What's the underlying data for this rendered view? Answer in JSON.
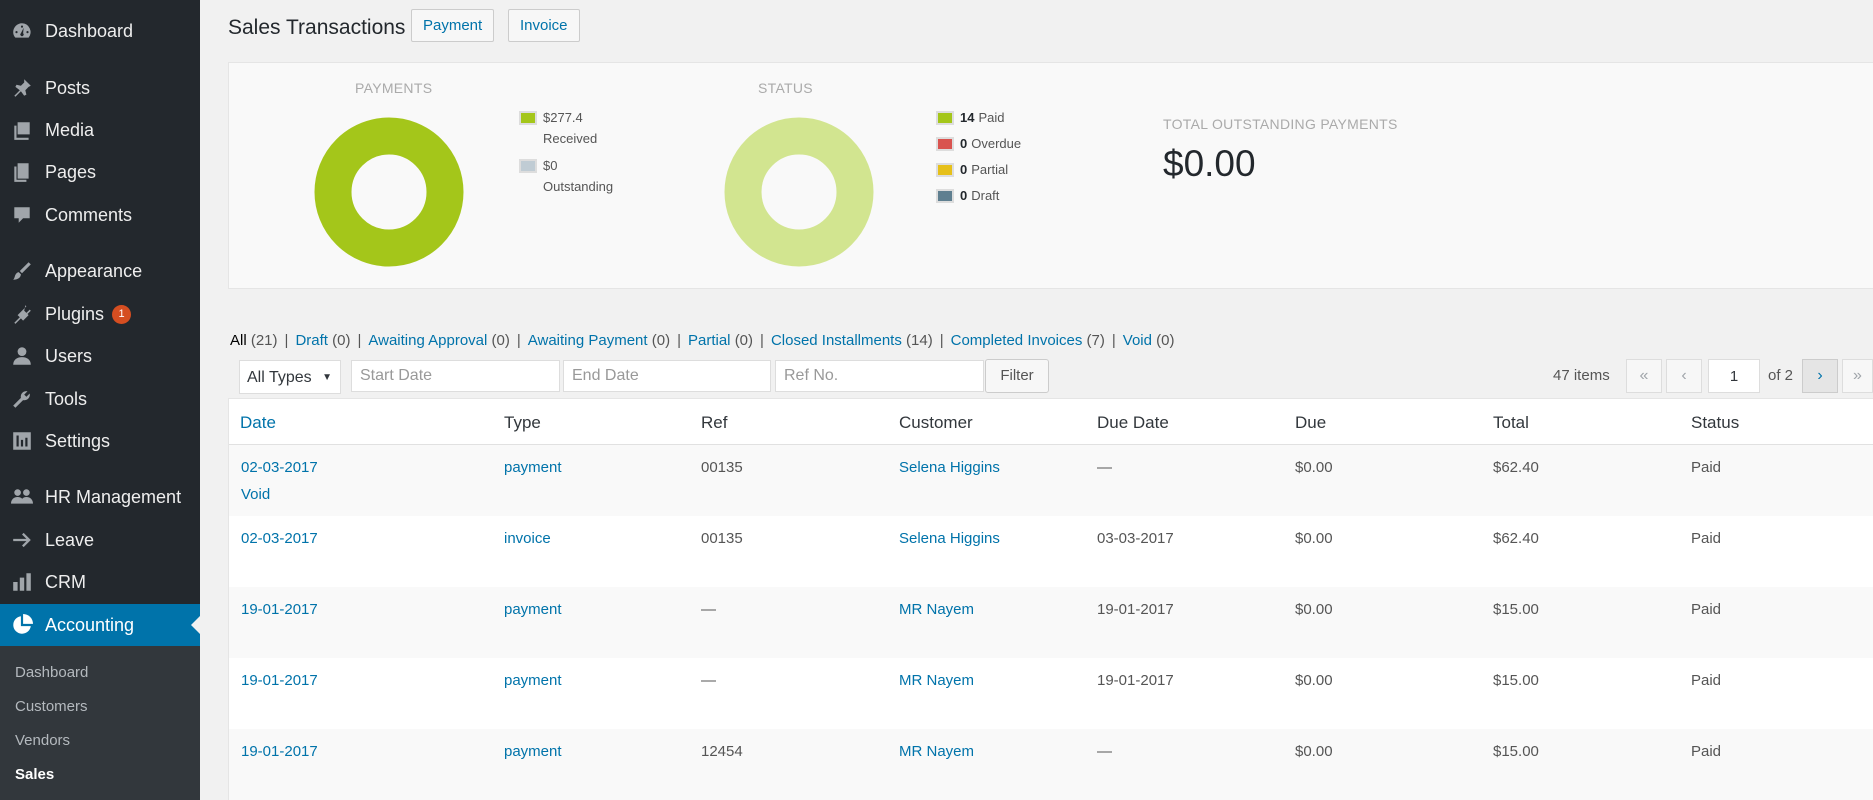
{
  "sidebar": {
    "menu": [
      {
        "label": "Dashboard",
        "icon": "dashboard-icon"
      },
      {
        "label": "Posts",
        "icon": "pin-icon"
      },
      {
        "label": "Media",
        "icon": "media-icon"
      },
      {
        "label": "Pages",
        "icon": "pages-icon"
      },
      {
        "label": "Comments",
        "icon": "comment-icon"
      },
      {
        "label": "Appearance",
        "icon": "brush-icon"
      },
      {
        "label": "Plugins",
        "icon": "plugin-icon",
        "badge": "1"
      },
      {
        "label": "Users",
        "icon": "user-icon"
      },
      {
        "label": "Tools",
        "icon": "wrench-icon"
      },
      {
        "label": "Settings",
        "icon": "settings-icon"
      },
      {
        "label": "HR Management",
        "icon": "group-icon"
      },
      {
        "label": "Leave",
        "icon": "arrow-right-icon"
      },
      {
        "label": "CRM",
        "icon": "chart-bar-icon"
      },
      {
        "label": "Accounting",
        "icon": "chart-pie-icon"
      }
    ],
    "submenu": [
      "Dashboard",
      "Customers",
      "Vendors",
      "Sales"
    ]
  },
  "header": {
    "title": "Sales Transactions",
    "payment_button": "Payment",
    "invoice_button": "Invoice"
  },
  "stats": {
    "payments_label": "PAYMENTS",
    "payments_legend": [
      {
        "value": "$277.4",
        "label": "Received",
        "color": "#a4c61a"
      },
      {
        "value": "$0",
        "label": "Outstanding",
        "color": "#c0ccd4"
      }
    ],
    "status_label": "STATUS",
    "status_legend": [
      {
        "count": "14",
        "label": "Paid",
        "color": "#a4c61a"
      },
      {
        "count": "0",
        "label": "Overdue",
        "color": "#d9534f"
      },
      {
        "count": "0",
        "label": "Partial",
        "color": "#e6c01a"
      },
      {
        "count": "0",
        "label": "Draft",
        "color": "#5f7f90"
      }
    ],
    "outstanding_label": "TOTAL OUTSTANDING PAYMENTS",
    "outstanding_value": "$0.00"
  },
  "filters": {
    "statuses": [
      {
        "label": "All",
        "count": "(21)"
      },
      {
        "label": "Draft",
        "count": "(0)"
      },
      {
        "label": "Awaiting Approval",
        "count": "(0)"
      },
      {
        "label": "Awaiting Payment",
        "count": "(0)"
      },
      {
        "label": "Partial",
        "count": "(0)"
      },
      {
        "label": "Closed Installments",
        "count": "(14)"
      },
      {
        "label": "Completed Invoices",
        "count": "(7)"
      },
      {
        "label": "Void",
        "count": "(0)"
      }
    ],
    "type_select": "All Types",
    "start_date_placeholder": "Start Date",
    "end_date_placeholder": "End Date",
    "ref_placeholder": "Ref No.",
    "filter_button": "Filter"
  },
  "pagination": {
    "items": "47 items",
    "first": "«",
    "prev": "‹",
    "current_page": "1",
    "of": "of 2",
    "next": "›",
    "last": "»"
  },
  "table": {
    "headers": [
      "Date",
      "Type",
      "Ref",
      "Customer",
      "Due Date",
      "Due",
      "Total",
      "Status"
    ],
    "rows": [
      {
        "date": "02-03-2017",
        "action": "Void",
        "type": "payment",
        "ref": "00135",
        "customer": "Selena Higgins",
        "due_date": "—",
        "due": "$0.00",
        "total": "$62.40",
        "status": "Paid"
      },
      {
        "date": "02-03-2017",
        "type": "invoice",
        "ref": "00135",
        "customer": "Selena Higgins",
        "due_date": "03-03-2017",
        "due": "$0.00",
        "total": "$62.40",
        "status": "Paid"
      },
      {
        "date": "19-01-2017",
        "type": "payment",
        "ref": "—",
        "customer": "MR Nayem",
        "due_date": "19-01-2017",
        "due": "$0.00",
        "total": "$15.00",
        "status": "Paid"
      },
      {
        "date": "19-01-2017",
        "type": "payment",
        "ref": "—",
        "customer": "MR Nayem",
        "due_date": "19-01-2017",
        "due": "$0.00",
        "total": "$15.00",
        "status": "Paid"
      },
      {
        "date": "19-01-2017",
        "type": "payment",
        "ref": "12454",
        "customer": "MR Nayem",
        "due_date": "—",
        "due": "$0.00",
        "total": "$15.00",
        "status": "Paid"
      }
    ]
  }
}
